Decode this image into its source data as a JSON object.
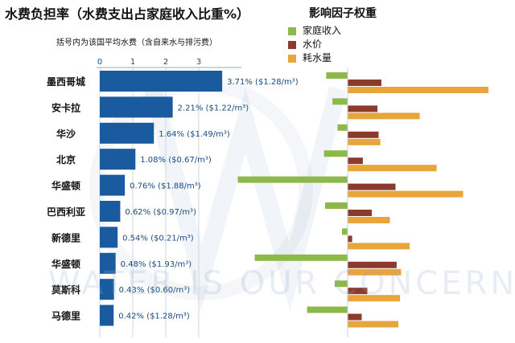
{
  "title": "水费负担率（水费支出占家庭收入比重%）",
  "subtitle": "括号内为该国平均水费（含自来水与排污费）",
  "right_title": "影响因子权重",
  "watermark": "WATER IS OUR CONCERN",
  "colors": {
    "bar": "#1a5a9e",
    "income": "#8db94a",
    "price": "#8b3a2b",
    "consumption": "#e8a53c"
  },
  "chart_data": [
    {
      "type": "bar",
      "orientation": "horizontal",
      "title": "水费负担率（水费支出占家庭收入比重%）",
      "subtitle": "括号内为该国平均水费（含自来水与排污费）",
      "categories": [
        "墨西哥城",
        "安卡拉",
        "华沙",
        "北京",
        "华盛顿",
        "巴西利亚",
        "新德里",
        "华盛顿",
        "莫斯科",
        "马德里"
      ],
      "values": [
        3.71,
        2.21,
        1.64,
        1.08,
        0.76,
        0.62,
        0.54,
        0.48,
        0.43,
        0.42
      ],
      "data_labels": [
        "3.71% ($1.28/m³)",
        "2.21% ($1.22/m³)",
        "1.64% ($1.49/m³)",
        "1.08% ($0.67/m³)",
        "0.76% ($1.88/m³)",
        "0.62% ($0.97/m³)",
        "0.54% ($0.21/m³)",
        "0.48% ($1.93/m³)",
        "0.43% ($0.60/m³)",
        "0.42% ($1.28/m³)"
      ],
      "xticks": [
        "0",
        "1",
        "2",
        "3"
      ],
      "xlim": [
        0,
        4.2
      ],
      "grid": true
    },
    {
      "type": "bar",
      "orientation": "horizontal",
      "stacking": "grouped",
      "title": "影响因子权重",
      "legend_position": "top-left",
      "categories": [
        "墨西哥城",
        "安卡拉",
        "华沙",
        "北京",
        "华盛顿",
        "巴西利亚",
        "新德里",
        "华盛顿",
        "莫斯科",
        "马德里"
      ],
      "series": [
        {
          "name": "家庭收入",
          "values": [
            -0.38,
            -0.27,
            -0.18,
            -0.42,
            -1.95,
            -0.4,
            -0.1,
            -1.65,
            -0.23,
            -0.72
          ]
        },
        {
          "name": "水价",
          "values": [
            0.6,
            0.53,
            0.55,
            0.27,
            0.85,
            0.43,
            0.08,
            0.87,
            0.35,
            0.25
          ]
        },
        {
          "name": "耗水量",
          "values": [
            2.5,
            1.28,
            0.58,
            1.58,
            2.05,
            0.75,
            1.1,
            0.95,
            0.93,
            0.9
          ]
        }
      ],
      "grid": false
    }
  ]
}
